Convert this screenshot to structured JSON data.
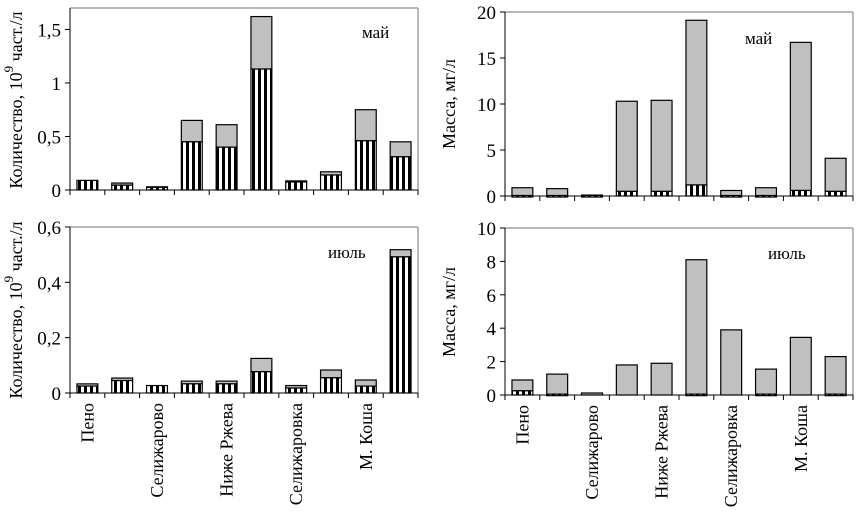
{
  "chart_data": [
    {
      "type": "bar",
      "stacked": true,
      "panel_label": "май",
      "ylabel": "Количество, 10^9 част./л",
      "ylabel_parts": {
        "main": "Количество, 10",
        "sup": "9",
        "tail": " част./л"
      },
      "xlabel": "",
      "ylim": [
        0,
        1.7
      ],
      "yticks": [
        0,
        0.5,
        1,
        1.5
      ],
      "ytick_labels": [
        "0",
        "0,5",
        "1",
        "1,5"
      ],
      "categories": [
        "Пено",
        "",
        "Селижарово",
        "",
        "Ниже Ржева",
        "",
        "Селижаровка",
        "",
        "М. Коша",
        ""
      ],
      "series": [
        {
          "name": "striped",
          "values": [
            0.09,
            0.045,
            0.025,
            0.45,
            0.4,
            1.13,
            0.075,
            0.14,
            0.46,
            0.31
          ]
        },
        {
          "name": "gray",
          "values": [
            0.0,
            0.02,
            0.005,
            0.2,
            0.21,
            0.49,
            0.01,
            0.03,
            0.29,
            0.14
          ]
        }
      ],
      "totals": [
        0.09,
        0.065,
        0.03,
        0.65,
        0.61,
        1.62,
        0.085,
        0.17,
        0.75,
        0.45
      ],
      "grid": false
    },
    {
      "type": "bar",
      "stacked": true,
      "panel_label": "май",
      "ylabel": "Масса, мг/л",
      "xlabel": "",
      "ylim": [
        0,
        20
      ],
      "yticks": [
        0,
        5,
        10,
        15,
        20
      ],
      "ytick_labels": [
        "0",
        "5",
        "10",
        "15",
        "20"
      ],
      "categories": [
        "Пено",
        "",
        "Селижарово",
        "",
        "Ниже Ржева",
        "",
        "Селижаровка",
        "",
        "М. Коша",
        ""
      ],
      "series": [
        {
          "name": "striped",
          "values": [
            0.05,
            0.05,
            0.05,
            0.5,
            0.5,
            1.2,
            0.05,
            0.05,
            0.6,
            0.5
          ]
        },
        {
          "name": "gray",
          "values": [
            0.85,
            0.75,
            0.05,
            9.8,
            9.9,
            17.9,
            0.55,
            0.85,
            16.1,
            3.6
          ]
        }
      ],
      "totals": [
        0.9,
        0.8,
        0.1,
        10.3,
        10.4,
        19.1,
        0.6,
        0.9,
        16.7,
        4.1
      ],
      "grid": false
    },
    {
      "type": "bar",
      "stacked": true,
      "panel_label": "июль",
      "ylabel": "Количество, 10^9 част./л",
      "ylabel_parts": {
        "main": "Количество, 10",
        "sup": "9",
        "tail": " част./л"
      },
      "xlabel": "",
      "ylim": [
        0,
        0.6
      ],
      "yticks": [
        0,
        0.2,
        0.4,
        0.6
      ],
      "ytick_labels": [
        "0",
        "0,2",
        "0,4",
        "0,6"
      ],
      "categories": [
        "Пено",
        "",
        "Селижарово",
        "",
        "Ниже Ржева",
        "",
        "Селижаровка",
        "",
        "М. Коша",
        ""
      ],
      "series": [
        {
          "name": "striped",
          "values": [
            0.025,
            0.045,
            0.027,
            0.033,
            0.033,
            0.077,
            0.018,
            0.055,
            0.025,
            0.492
          ]
        },
        {
          "name": "gray",
          "values": [
            0.008,
            0.009,
            0.0,
            0.01,
            0.01,
            0.048,
            0.009,
            0.028,
            0.022,
            0.026
          ]
        }
      ],
      "totals": [
        0.033,
        0.054,
        0.027,
        0.043,
        0.043,
        0.125,
        0.027,
        0.083,
        0.047,
        0.518
      ],
      "grid": false
    },
    {
      "type": "bar",
      "stacked": true,
      "panel_label": "июль",
      "ylabel": "Масса, мг/л",
      "xlabel": "",
      "ylim": [
        0,
        10
      ],
      "yticks": [
        0,
        2,
        4,
        6,
        8,
        10
      ],
      "ytick_labels": [
        "0",
        "2",
        "4",
        "6",
        "8",
        "10"
      ],
      "categories": [
        "Пено",
        "",
        "Селижарово",
        "",
        "Ниже Ржева",
        "",
        "Селижаровка",
        "",
        "М. Коша",
        ""
      ],
      "series": [
        {
          "name": "striped",
          "values": [
            0.25,
            0.05,
            0.0,
            0.0,
            0.0,
            0.05,
            0.0,
            0.05,
            0.0,
            0.05
          ]
        },
        {
          "name": "gray",
          "values": [
            0.65,
            1.2,
            0.12,
            1.8,
            1.9,
            8.05,
            3.9,
            1.5,
            3.45,
            2.25
          ]
        }
      ],
      "totals": [
        0.9,
        1.25,
        0.12,
        1.8,
        1.9,
        8.1,
        3.9,
        1.55,
        3.45,
        2.3
      ],
      "grid": false
    }
  ],
  "colors": {
    "gray_fill": "#c0c0c0",
    "stripe_dark": "#000000",
    "stripe_light": "#ffffff",
    "axis": "#000000",
    "frame": "#a0a0a0"
  }
}
